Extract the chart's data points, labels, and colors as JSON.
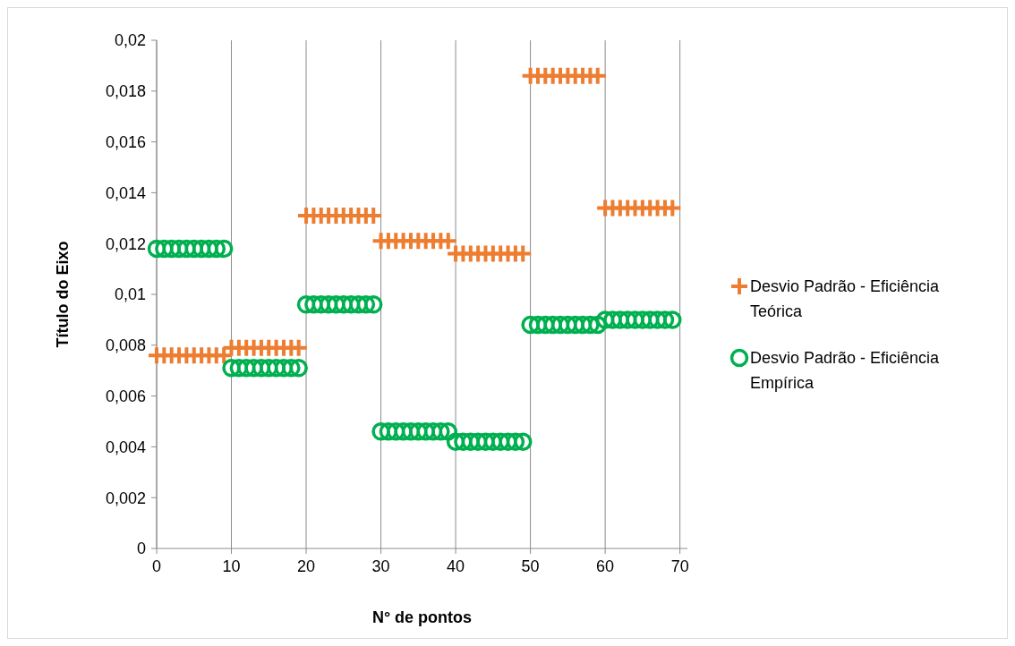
{
  "chart_data": {
    "type": "scatter",
    "xlabel": "N° de pontos",
    "ylabel": "Título do Eixo",
    "x": [
      0,
      1,
      2,
      3,
      4,
      5,
      6,
      7,
      8,
      9,
      10,
      11,
      12,
      13,
      14,
      15,
      16,
      17,
      18,
      19,
      20,
      21,
      22,
      23,
      24,
      25,
      26,
      27,
      28,
      29,
      30,
      31,
      32,
      33,
      34,
      35,
      36,
      37,
      38,
      39,
      40,
      41,
      42,
      43,
      44,
      45,
      46,
      47,
      48,
      49,
      50,
      51,
      52,
      53,
      54,
      55,
      56,
      57,
      58,
      59,
      60,
      61,
      62,
      63,
      64,
      65,
      66,
      67,
      68,
      69
    ],
    "series": [
      {
        "name": "Desvio Padrão - Eficiência Teórica",
        "color": "#ed7d31",
        "marker": "cross",
        "values": [
          0.0076,
          0.0076,
          0.0076,
          0.0076,
          0.0076,
          0.0076,
          0.0076,
          0.0076,
          0.0076,
          0.0076,
          0.0079,
          0.0079,
          0.0079,
          0.0079,
          0.0079,
          0.0079,
          0.0079,
          0.0079,
          0.0079,
          0.0079,
          0.0131,
          0.0131,
          0.0131,
          0.0131,
          0.0131,
          0.0131,
          0.0131,
          0.0131,
          0.0131,
          0.0131,
          0.0121,
          0.0121,
          0.0121,
          0.0121,
          0.0121,
          0.0121,
          0.0121,
          0.0121,
          0.0121,
          0.0121,
          0.0116,
          0.0116,
          0.0116,
          0.0116,
          0.0116,
          0.0116,
          0.0116,
          0.0116,
          0.0116,
          0.0116,
          0.0186,
          0.0186,
          0.0186,
          0.0186,
          0.0186,
          0.0186,
          0.0186,
          0.0186,
          0.0186,
          0.0186,
          0.0134,
          0.0134,
          0.0134,
          0.0134,
          0.0134,
          0.0134,
          0.0134,
          0.0134,
          0.0134,
          0.0134
        ]
      },
      {
        "name": "Desvio Padrão - Eficiência Empírica",
        "color": "#00b050",
        "marker": "circle",
        "values": [
          0.0118,
          0.0118,
          0.0118,
          0.0118,
          0.0118,
          0.0118,
          0.0118,
          0.0118,
          0.0118,
          0.0118,
          0.0071,
          0.0071,
          0.0071,
          0.0071,
          0.0071,
          0.0071,
          0.0071,
          0.0071,
          0.0071,
          0.0071,
          0.0096,
          0.0096,
          0.0096,
          0.0096,
          0.0096,
          0.0096,
          0.0096,
          0.0096,
          0.0096,
          0.0096,
          0.0046,
          0.0046,
          0.0046,
          0.0046,
          0.0046,
          0.0046,
          0.0046,
          0.0046,
          0.0046,
          0.0046,
          0.0042,
          0.0042,
          0.0042,
          0.0042,
          0.0042,
          0.0042,
          0.0042,
          0.0042,
          0.0042,
          0.0042,
          0.0088,
          0.0088,
          0.0088,
          0.0088,
          0.0088,
          0.0088,
          0.0088,
          0.0088,
          0.0088,
          0.0088,
          0.009,
          0.009,
          0.009,
          0.009,
          0.009,
          0.009,
          0.009,
          0.009,
          0.009,
          0.009
        ]
      }
    ],
    "xlim": [
      0,
      71
    ],
    "xticks": [
      0,
      10,
      20,
      30,
      40,
      50,
      60,
      70
    ],
    "ylim": [
      0,
      0.02
    ],
    "yticks": [
      0,
      {
        "value": 0.002,
        "label": "0,002"
      },
      {
        "value": 0.004,
        "label": "0,004"
      },
      {
        "value": 0.006,
        "label": "0,006"
      },
      {
        "value": 0.008,
        "label": "0,008"
      },
      {
        "value": 0.01,
        "label": "0,01"
      },
      {
        "value": 0.012,
        "label": "0,012"
      },
      {
        "value": 0.014,
        "label": "0,014"
      },
      {
        "value": 0.016,
        "label": "0,016"
      },
      {
        "value": 0.018,
        "label": "0,018"
      },
      {
        "value": 0.02,
        "label": "0,02"
      }
    ],
    "grid": "x",
    "legend": "right"
  }
}
